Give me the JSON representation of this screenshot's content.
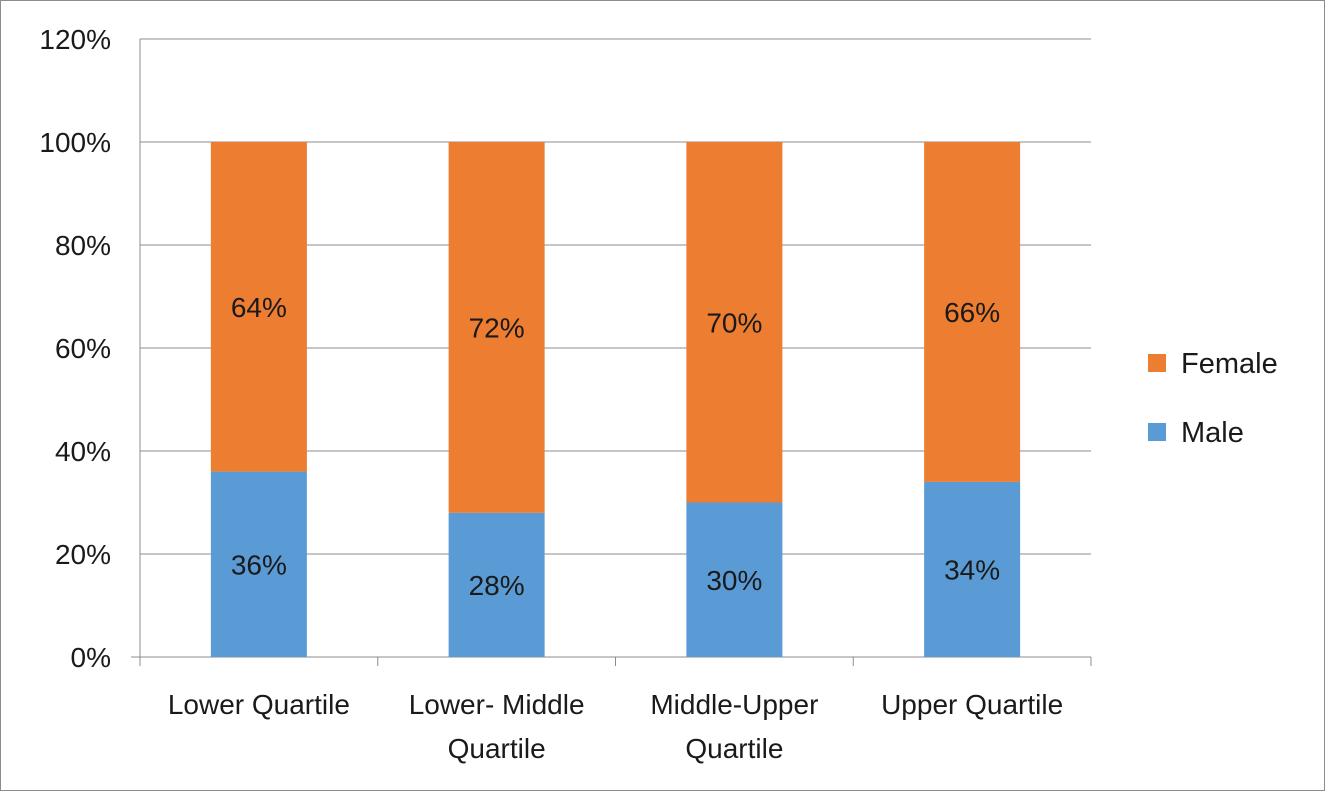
{
  "chart_data": {
    "type": "bar",
    "stacked": true,
    "title": "",
    "xlabel": "",
    "ylabel": "",
    "categories": [
      [
        "Lower Quartile"
      ],
      [
        "Lower- Middle",
        "Quartile"
      ],
      [
        "Middle-Upper",
        "Quartile"
      ],
      [
        "Upper Quartile"
      ]
    ],
    "series": [
      {
        "name": "Male",
        "color": "#5b9bd5",
        "values": [
          36,
          28,
          30,
          34
        ],
        "labels": [
          "36%",
          "28%",
          "30%",
          "34%"
        ]
      },
      {
        "name": "Female",
        "color": "#ed7d31",
        "values": [
          64,
          72,
          70,
          66
        ],
        "labels": [
          "64%",
          "72%",
          "70%",
          "66%"
        ]
      }
    ],
    "ylim": [
      0,
      120
    ],
    "yticks": [
      0,
      20,
      40,
      60,
      80,
      100,
      120
    ],
    "ytick_labels": [
      "0%",
      "20%",
      "40%",
      "60%",
      "80%",
      "100%",
      "120%"
    ],
    "grid": true,
    "legend_position": "right",
    "legend_order": [
      "Female",
      "Male"
    ]
  }
}
